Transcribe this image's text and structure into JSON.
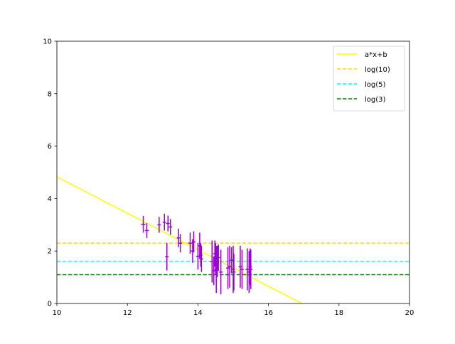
{
  "chart_data": {
    "type": "scatter",
    "title": "",
    "xlabel": "",
    "ylabel": "",
    "xlim": [
      10,
      20
    ],
    "ylim": [
      0,
      10
    ],
    "xticks": [
      10,
      12,
      14,
      16,
      18,
      20
    ],
    "yticks": [
      0,
      2,
      4,
      6,
      8,
      10
    ],
    "grid": false,
    "legend_position": "top-right",
    "series": [
      {
        "name": "a*x+b",
        "kind": "line",
        "color": "#ffff00",
        "dash": "solid",
        "x": [
          10,
          16.95
        ],
        "y": [
          4.83,
          0
        ]
      },
      {
        "name": "log(10)",
        "kind": "hline",
        "color": "#ffd700",
        "dash": "dashed",
        "y": 2.303
      },
      {
        "name": "log(5)",
        "kind": "hline",
        "color": "#00ffff",
        "dash": "dashed",
        "y": 1.609
      },
      {
        "name": "log(3)",
        "kind": "hline",
        "color": "#008000",
        "dash": "dashed",
        "y": 1.099
      }
    ],
    "errorbar_series": {
      "color": "#9400d3",
      "points": [
        {
          "x": 12.45,
          "y": 3.02,
          "xerr": 0.06,
          "yerr": 0.32
        },
        {
          "x": 12.55,
          "y": 2.78,
          "xerr": 0.06,
          "yerr": 0.28
        },
        {
          "x": 12.9,
          "y": 3.0,
          "xerr": 0.05,
          "yerr": 0.3
        },
        {
          "x": 13.05,
          "y": 3.1,
          "xerr": 0.05,
          "yerr": 0.32
        },
        {
          "x": 13.12,
          "y": 1.78,
          "xerr": 0.05,
          "yerr": 0.52
        },
        {
          "x": 13.15,
          "y": 3.05,
          "xerr": 0.05,
          "yerr": 0.3
        },
        {
          "x": 13.22,
          "y": 2.92,
          "xerr": 0.05,
          "yerr": 0.3
        },
        {
          "x": 13.45,
          "y": 2.5,
          "xerr": 0.05,
          "yerr": 0.35
        },
        {
          "x": 13.5,
          "y": 2.3,
          "xerr": 0.05,
          "yerr": 0.35
        },
        {
          "x": 13.78,
          "y": 2.3,
          "xerr": 0.05,
          "yerr": 0.4
        },
        {
          "x": 13.85,
          "y": 2.0,
          "xerr": 0.05,
          "yerr": 0.45
        },
        {
          "x": 13.88,
          "y": 2.35,
          "xerr": 0.05,
          "yerr": 0.4
        },
        {
          "x": 14.0,
          "y": 1.8,
          "xerr": 0.05,
          "yerr": 0.5
        },
        {
          "x": 14.05,
          "y": 2.2,
          "xerr": 0.05,
          "yerr": 0.5
        },
        {
          "x": 14.08,
          "y": 1.85,
          "xerr": 0.05,
          "yerr": 0.45
        },
        {
          "x": 14.1,
          "y": 1.7,
          "xerr": 0.05,
          "yerr": 0.5
        },
        {
          "x": 14.4,
          "y": 1.6,
          "xerr": 0.05,
          "yerr": 0.8
        },
        {
          "x": 14.45,
          "y": 1.25,
          "xerr": 0.05,
          "yerr": 0.55
        },
        {
          "x": 14.48,
          "y": 1.9,
          "xerr": 0.05,
          "yerr": 0.5
        },
        {
          "x": 14.5,
          "y": 1.7,
          "xerr": 0.05,
          "yerr": 0.6
        },
        {
          "x": 14.52,
          "y": 1.3,
          "xerr": 0.05,
          "yerr": 0.9
        },
        {
          "x": 14.55,
          "y": 1.6,
          "xerr": 0.05,
          "yerr": 0.6
        },
        {
          "x": 14.58,
          "y": 1.75,
          "xerr": 0.05,
          "yerr": 0.5
        },
        {
          "x": 14.65,
          "y": 1.2,
          "xerr": 0.05,
          "yerr": 0.85
        },
        {
          "x": 14.85,
          "y": 1.35,
          "xerr": 0.05,
          "yerr": 0.8
        },
        {
          "x": 14.9,
          "y": 1.4,
          "xerr": 0.05,
          "yerr": 0.8
        },
        {
          "x": 14.95,
          "y": 1.65,
          "xerr": 0.05,
          "yerr": 0.5
        },
        {
          "x": 15.0,
          "y": 1.3,
          "xerr": 0.05,
          "yerr": 0.9
        },
        {
          "x": 15.02,
          "y": 1.2,
          "xerr": 0.05,
          "yerr": 0.7
        },
        {
          "x": 15.2,
          "y": 1.4,
          "xerr": 0.05,
          "yerr": 0.8
        },
        {
          "x": 15.25,
          "y": 1.3,
          "xerr": 0.05,
          "yerr": 0.75
        },
        {
          "x": 15.4,
          "y": 1.3,
          "xerr": 0.05,
          "yerr": 0.8
        },
        {
          "x": 15.45,
          "y": 1.2,
          "xerr": 0.05,
          "yerr": 0.8
        },
        {
          "x": 15.48,
          "y": 1.4,
          "xerr": 0.05,
          "yerr": 0.7
        },
        {
          "x": 15.5,
          "y": 1.3,
          "xerr": 0.05,
          "yerr": 0.75
        }
      ]
    }
  }
}
